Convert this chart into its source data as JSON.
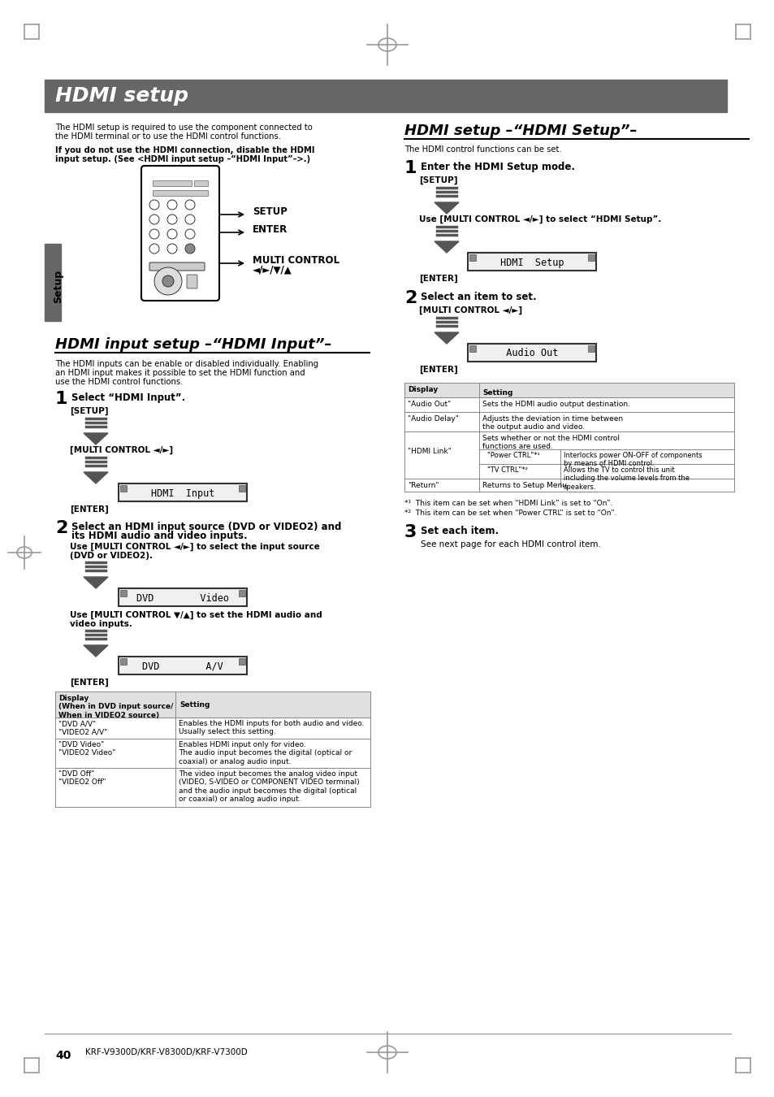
{
  "page_bg": "#ffffff",
  "title_bar_color": "#666666",
  "title_text": "HDMI setup",
  "title_text_color": "#ffffff",
  "page_number": "40",
  "page_number_text": "KRF-V9300D/KRF-V8300D/KRF-V7300D"
}
